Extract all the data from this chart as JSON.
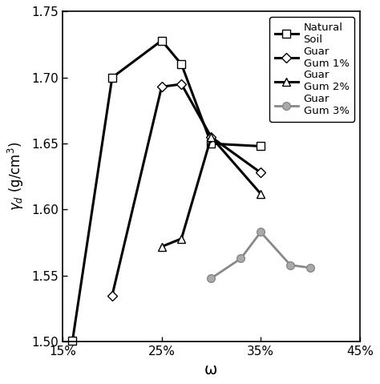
{
  "series": [
    {
      "label": "Natural\nSoil",
      "x": [
        16,
        20,
        25,
        27,
        30,
        35
      ],
      "y": [
        1.501,
        1.7,
        1.728,
        1.71,
        1.65,
        1.648
      ],
      "marker": "s",
      "color": "black",
      "markersize": 7,
      "markerfacecolor": "white",
      "linewidth": 2.2
    },
    {
      "label": "Guar\nGum 1%",
      "x": [
        20,
        25,
        27,
        30,
        35
      ],
      "y": [
        1.535,
        1.693,
        1.695,
        1.655,
        1.628
      ],
      "marker": "D",
      "color": "black",
      "markersize": 6,
      "markerfacecolor": "white",
      "linewidth": 2.2
    },
    {
      "label": "Guar\nGum 2%",
      "x": [
        25,
        27,
        30,
        35
      ],
      "y": [
        1.572,
        1.578,
        1.655,
        1.612
      ],
      "marker": "^",
      "color": "black",
      "markersize": 7,
      "markerfacecolor": "white",
      "linewidth": 2.2
    },
    {
      "label": "Guar\nGum 3%",
      "x": [
        30,
        33,
        35,
        38,
        40
      ],
      "y": [
        1.548,
        1.563,
        1.583,
        1.558,
        1.556
      ],
      "marker": "o",
      "color": "#888888",
      "markersize": 7,
      "markerfacecolor": "#aaaaaa",
      "linewidth": 2.0
    }
  ],
  "xlabel": "ω",
  "ylabel": "γd (g/cm³)",
  "xlim": [
    15,
    45
  ],
  "ylim": [
    1.5,
    1.75
  ],
  "xticks": [
    15,
    25,
    35,
    45
  ],
  "xtick_labels": [
    "15%",
    "25%",
    "35%",
    "45%"
  ],
  "yticks": [
    1.5,
    1.55,
    1.6,
    1.65,
    1.7,
    1.75
  ],
  "figsize": [
    4.74,
    4.79
  ],
  "dpi": 100,
  "background_color": "white"
}
